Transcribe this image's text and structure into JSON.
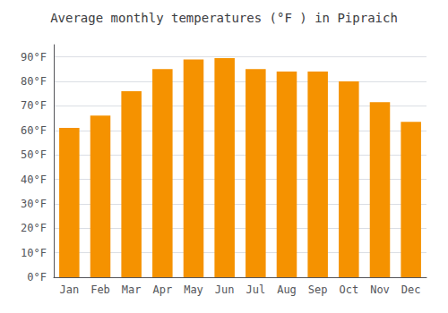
{
  "chart_data": {
    "type": "bar",
    "title": "Average monthly temperatures (°F ) in Pipraich",
    "categories": [
      "Jan",
      "Feb",
      "Mar",
      "Apr",
      "May",
      "Jun",
      "Jul",
      "Aug",
      "Sep",
      "Oct",
      "Nov",
      "Dec"
    ],
    "values": [
      61,
      66,
      76,
      85,
      89,
      89.5,
      85,
      84,
      84,
      80,
      71.5,
      63.5
    ],
    "color": "#F59200",
    "ylim": [
      0,
      95
    ],
    "yticks": [
      {
        "value": 0,
        "label": "0°F"
      },
      {
        "value": 10,
        "label": "10°F"
      },
      {
        "value": 20,
        "label": "20°F"
      },
      {
        "value": 30,
        "label": "30°F"
      },
      {
        "value": 40,
        "label": "40°F"
      },
      {
        "value": 50,
        "label": "50°F"
      },
      {
        "value": 60,
        "label": "60°F"
      },
      {
        "value": 70,
        "label": "70°F"
      },
      {
        "value": 80,
        "label": "80°F"
      },
      {
        "value": 90,
        "label": "90°F"
      }
    ],
    "grid": true
  }
}
